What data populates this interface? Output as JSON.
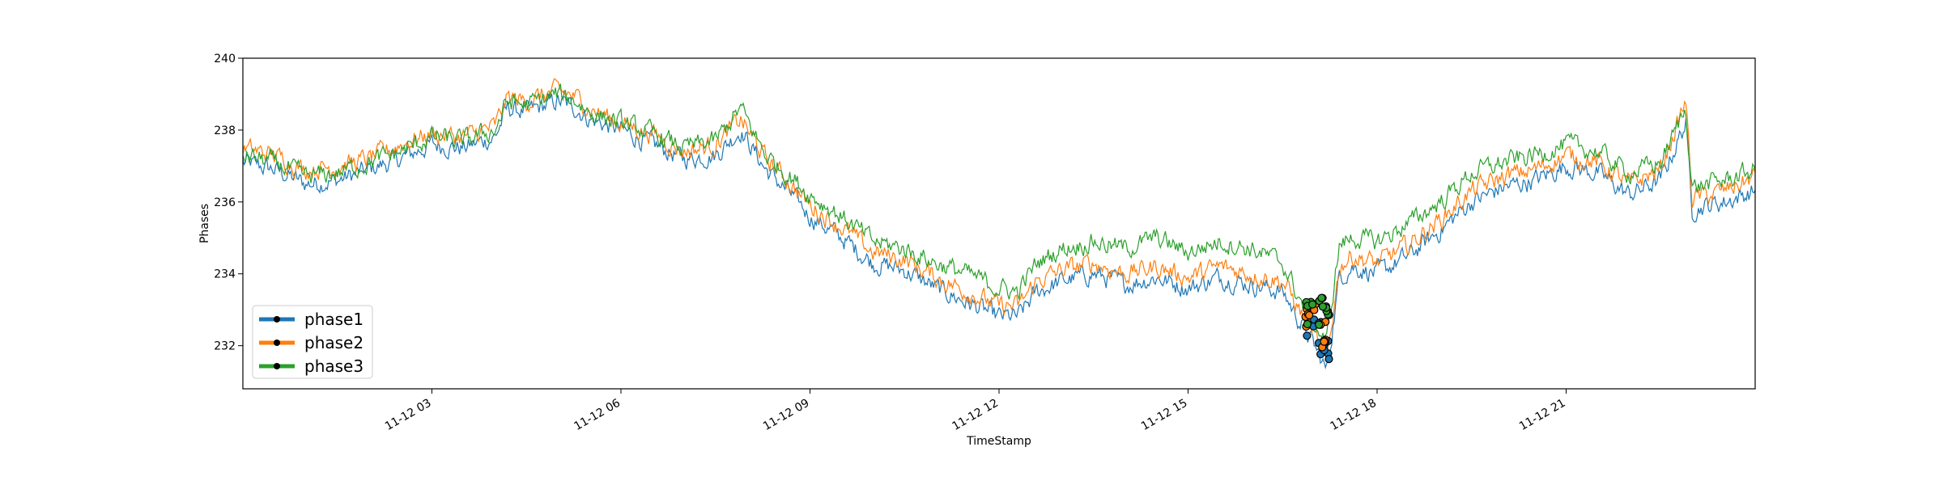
{
  "chart_data": {
    "type": "line",
    "title": "",
    "xlabel": "TimeStamp",
    "ylabel": "Phases",
    "xlim_hours": [
      0.0,
      24.0
    ],
    "ylim": [
      230.8,
      240.0
    ],
    "y_ticks": [
      232,
      234,
      236,
      238,
      240
    ],
    "x_ticks": [
      {
        "value": 3,
        "label": "11-12 03"
      },
      {
        "value": 6,
        "label": "11-12 06"
      },
      {
        "value": 9,
        "label": "11-12 09"
      },
      {
        "value": 12,
        "label": "11-12 12"
      },
      {
        "value": 15,
        "label": "11-12 15"
      },
      {
        "value": 18,
        "label": "11-12 18"
      },
      {
        "value": 21,
        "label": "11-12 21"
      }
    ],
    "grid": false,
    "legend": {
      "position": "lower-left",
      "entries": [
        "phase1",
        "phase2",
        "phase3"
      ]
    },
    "x": [
      0.0,
      0.5,
      1.0,
      1.5,
      2.0,
      2.5,
      3.0,
      3.5,
      4.0,
      4.2,
      4.5,
      5.0,
      5.3,
      5.5,
      6.0,
      6.5,
      7.0,
      7.5,
      7.9,
      8.3,
      8.7,
      9.0,
      9.5,
      10.0,
      10.5,
      11.0,
      11.5,
      12.0,
      12.3,
      12.6,
      13.0,
      13.5,
      14.0,
      14.5,
      15.0,
      15.5,
      16.0,
      16.5,
      16.8,
      17.0,
      17.2,
      17.4,
      17.6,
      18.0,
      18.5,
      19.0,
      19.5,
      20.0,
      20.5,
      21.0,
      21.5,
      22.0,
      22.5,
      22.9,
      23.0,
      23.5,
      24.0
    ],
    "series": [
      {
        "name": "phase1",
        "color": "#1f77b4",
        "values": [
          237.1,
          236.9,
          236.5,
          236.6,
          236.9,
          237.2,
          237.6,
          237.5,
          237.8,
          238.6,
          238.5,
          238.8,
          238.6,
          238.3,
          238.0,
          237.6,
          237.2,
          237.3,
          238.0,
          236.9,
          236.2,
          235.6,
          235.0,
          234.3,
          234.1,
          233.6,
          233.2,
          232.8,
          232.8,
          233.5,
          233.8,
          234.0,
          233.7,
          233.9,
          233.6,
          233.9,
          233.7,
          233.5,
          232.6,
          232.0,
          231.3,
          233.9,
          234.2,
          234.0,
          234.5,
          235.2,
          236.0,
          236.4,
          236.6,
          237.0,
          236.8,
          236.2,
          236.6,
          238.2,
          235.8,
          236.0,
          236.3
        ]
      },
      {
        "name": "phase2",
        "color": "#ff7f0e",
        "values": [
          237.5,
          237.3,
          236.9,
          237.0,
          237.2,
          237.6,
          237.9,
          237.8,
          238.1,
          238.9,
          238.8,
          239.1,
          238.9,
          238.6,
          238.2,
          237.9,
          237.4,
          237.6,
          238.3,
          237.2,
          236.5,
          235.9,
          235.3,
          234.6,
          234.4,
          233.9,
          233.5,
          233.1,
          233.1,
          233.8,
          234.1,
          234.3,
          234.0,
          234.2,
          233.9,
          234.2,
          234.0,
          233.8,
          232.9,
          232.3,
          231.6,
          234.2,
          234.5,
          234.3,
          234.8,
          235.5,
          236.3,
          236.7,
          236.9,
          237.3,
          237.1,
          236.5,
          236.9,
          238.8,
          236.1,
          236.3,
          236.7
        ]
      },
      {
        "name": "phase3",
        "color": "#2ca02c",
        "values": [
          237.3,
          237.1,
          236.7,
          236.8,
          237.1,
          237.4,
          237.8,
          237.7,
          238.0,
          238.8,
          238.7,
          239.0,
          238.8,
          238.5,
          238.2,
          237.9,
          237.5,
          237.7,
          238.6,
          237.3,
          236.7,
          236.2,
          235.6,
          234.9,
          234.7,
          234.3,
          234.0,
          233.6,
          233.5,
          234.3,
          234.7,
          234.9,
          234.7,
          235.0,
          234.6,
          234.9,
          234.7,
          234.3,
          233.2,
          232.6,
          232.1,
          234.8,
          235.0,
          234.9,
          235.4,
          236.0,
          236.8,
          237.1,
          237.3,
          237.6,
          237.4,
          236.8,
          237.1,
          238.6,
          236.4,
          236.6,
          236.9
        ]
      }
    ]
  }
}
